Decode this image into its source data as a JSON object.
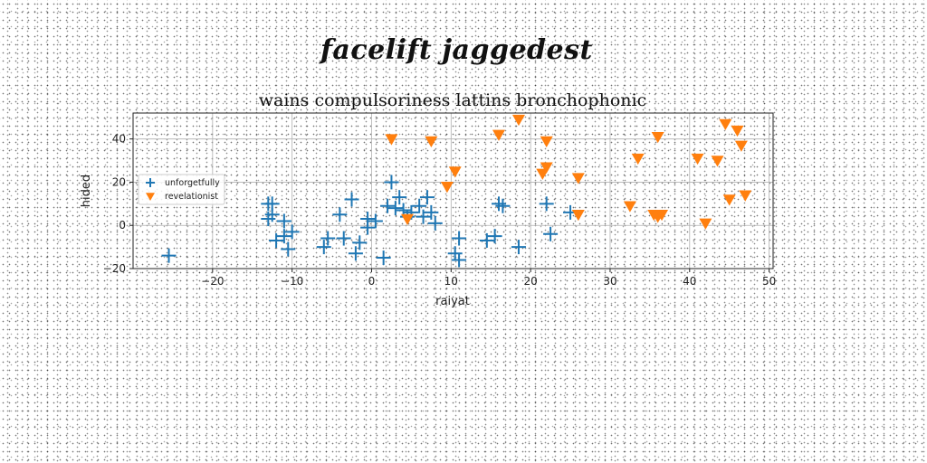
{
  "suptitle": "facelift jaggedest",
  "chart_data": {
    "type": "scatter",
    "title": "wains compulsoriness lattins bronchophonic",
    "xlabel": "raiyat",
    "ylabel": "hided",
    "xlim": [
      -30,
      50.5
    ],
    "ylim": [
      -20,
      52
    ],
    "xticks": [
      -20,
      -10,
      0,
      10,
      20,
      30,
      40,
      50
    ],
    "yticks": [
      -20,
      0,
      20,
      40
    ],
    "xtick_labels": [
      "−20",
      "−10",
      "0",
      "10",
      "20",
      "30",
      "40",
      "50"
    ],
    "ytick_labels": [
      "−20",
      "0",
      "20",
      "40"
    ],
    "grid": true,
    "legend": "center-left",
    "series": [
      {
        "name": "unforgetfully",
        "marker": "plus",
        "color": "#1f77b4",
        "points": [
          [
            -25.5,
            -14
          ],
          [
            -13,
            10
          ],
          [
            -12.5,
            5
          ],
          [
            -12.5,
            10
          ],
          [
            -13,
            3
          ],
          [
            -12,
            -7
          ],
          [
            -11,
            -5
          ],
          [
            -11,
            2
          ],
          [
            -10.5,
            -11
          ],
          [
            -10,
            -3
          ],
          [
            -6,
            -10
          ],
          [
            -5.5,
            -6
          ],
          [
            -4,
            5
          ],
          [
            -3.5,
            -6
          ],
          [
            -2.5,
            12
          ],
          [
            -2,
            -13
          ],
          [
            -1.5,
            -8
          ],
          [
            -0.5,
            -1
          ],
          [
            -0.5,
            3
          ],
          [
            0.5,
            2
          ],
          [
            1.5,
            -15
          ],
          [
            2,
            9
          ],
          [
            2.5,
            20
          ],
          [
            3,
            8
          ],
          [
            3.5,
            13
          ],
          [
            4,
            7
          ],
          [
            4.5,
            4
          ],
          [
            5,
            6
          ],
          [
            6,
            9
          ],
          [
            6.5,
            4
          ],
          [
            7,
            13
          ],
          [
            7.5,
            6
          ],
          [
            8,
            1
          ],
          [
            10.5,
            -13
          ],
          [
            11,
            -16
          ],
          [
            11,
            -6
          ],
          [
            14.5,
            -7
          ],
          [
            15.5,
            -5
          ],
          [
            16,
            10
          ],
          [
            16.5,
            9
          ],
          [
            18.5,
            -10
          ],
          [
            22,
            10
          ],
          [
            22.5,
            -4
          ],
          [
            25,
            6
          ]
        ]
      },
      {
        "name": "revelationist",
        "marker": "triangle-down",
        "color": "#ff7f0e",
        "points": [
          [
            2.5,
            40
          ],
          [
            4.5,
            3
          ],
          [
            7.5,
            39
          ],
          [
            9.5,
            18
          ],
          [
            10.5,
            25
          ],
          [
            16,
            42
          ],
          [
            18.5,
            49
          ],
          [
            21.5,
            24
          ],
          [
            22,
            39
          ],
          [
            22,
            27
          ],
          [
            26,
            22
          ],
          [
            26,
            5
          ],
          [
            32.5,
            9
          ],
          [
            33.5,
            31
          ],
          [
            35.5,
            5
          ],
          [
            36,
            4
          ],
          [
            36,
            41
          ],
          [
            36.5,
            5
          ],
          [
            41,
            31
          ],
          [
            42,
            1
          ],
          [
            43.5,
            30
          ],
          [
            44.5,
            47
          ],
          [
            45,
            12
          ],
          [
            46,
            44
          ],
          [
            46.5,
            37
          ],
          [
            47,
            14
          ]
        ]
      }
    ]
  }
}
